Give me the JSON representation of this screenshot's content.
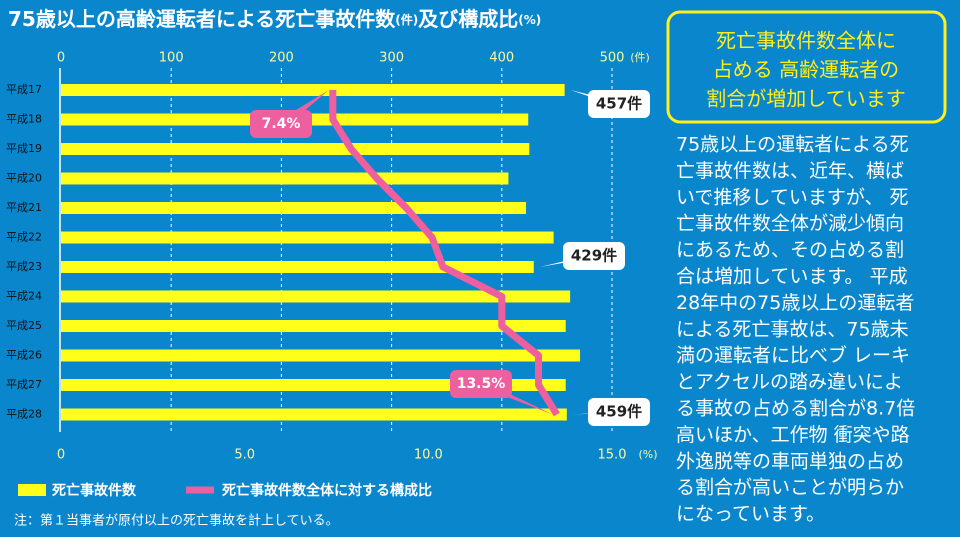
{
  "chart_data": {
    "type": "bar",
    "title": [
      "75歳以上の高齢運転者による死亡事故件数",
      "(件)",
      "及び構成比",
      "(%)"
    ],
    "categories": [
      "平成17",
      "平成18",
      "平成19",
      "平成20",
      "平成21",
      "平成22",
      "平成23",
      "平成24",
      "平成25",
      "平成26",
      "平成27",
      "平成28"
    ],
    "series": [
      {
        "name": "死亡事故件数",
        "type": "bar",
        "color": "#ffff1a",
        "values": [
          457,
          424,
          425,
          406,
          422,
          447,
          429,
          462,
          458,
          471,
          458,
          459
        ],
        "value_labels": [
          "457件",
          null,
          null,
          null,
          null,
          null,
          "429件",
          null,
          null,
          null,
          null,
          "459件"
        ]
      },
      {
        "name": "死亡事故件数全体に対する構成比",
        "type": "line",
        "axis": "x2",
        "color": "#ee5fa0",
        "values": [
          7.4,
          7.4,
          7.9,
          8.6,
          9.4,
          10.1,
          10.4,
          12.0,
          12.0,
          13.0,
          13.0,
          13.5
        ],
        "value_labels": [
          "7.4%",
          null,
          null,
          null,
          null,
          null,
          null,
          null,
          null,
          null,
          null,
          "13.5%"
        ]
      }
    ],
    "xlim": [
      0,
      500
    ],
    "xticks": [
      0,
      100,
      200,
      300,
      400,
      500
    ],
    "x_unit": "(件)",
    "x2lim": [
      0,
      15
    ],
    "x2ticks": [
      0,
      {
        "value": 5,
        "label": "5.0"
      },
      {
        "value": 10,
        "label": "10.0"
      },
      {
        "value": 15,
        "label": "15.0"
      }
    ],
    "x2_unit": "(%)",
    "grid": true,
    "note": "注：第１当事者が原付以上の死亡事故を計上している。"
  },
  "panel": {
    "heading_lines": [
      "死亡事故件数全体に",
      "占める 高齢運転者の",
      "割合が増加しています"
    ],
    "body_lines": [
      "75歳以上の運転者による死",
      "亡事故件数は、近年、横ば",
      "いで推移していますが、 死",
      "亡事故件数全体が減少傾向",
      "にあるため、その占める割",
      "合は増加しています。 平成",
      "28年中の75歳以上の運転者",
      "による死亡事故は、75歳未",
      "満の運転者に比べブ レーキ",
      "とアクセルの踏み違いによ",
      "る事故の占める割合が8.7倍",
      "高いほか、工作物 衝突や路",
      "外逸脱等の車両単独の占め",
      "る割合が高いことが明らか",
      "になっています。"
    ]
  }
}
